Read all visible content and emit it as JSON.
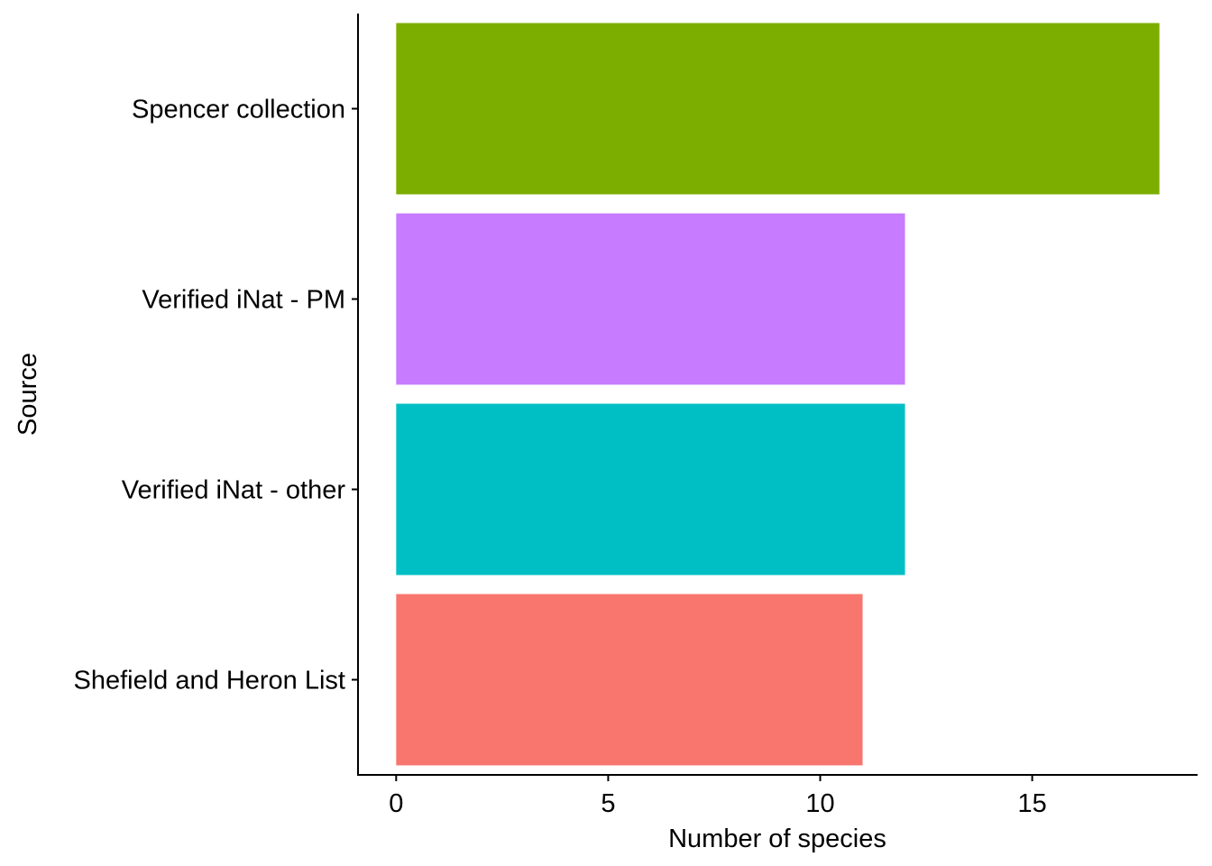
{
  "chart_data": {
    "type": "bar",
    "orientation": "horizontal",
    "categories": [
      "Spencer collection",
      "Verified iNat - PM",
      "Verified iNat - other",
      "Shefield and Heron List"
    ],
    "values": [
      18,
      12,
      12,
      11
    ],
    "colors": [
      "#7CAE00",
      "#C77CFF",
      "#00BFC4",
      "#F8766D"
    ],
    "xlabel": "Number of species",
    "ylabel": "Source",
    "xticks": [
      0,
      5,
      10,
      15
    ],
    "xlim": [
      -0.9,
      18.9
    ],
    "grid": false,
    "legend": "none"
  }
}
